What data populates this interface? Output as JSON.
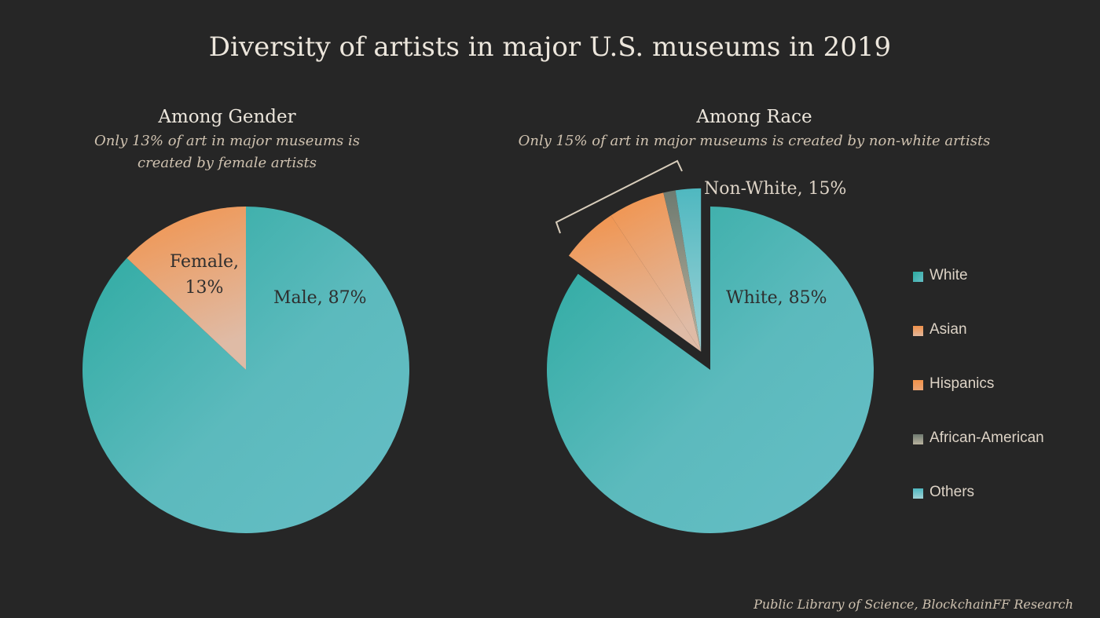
{
  "title": "Diversity of artists in major U.S. museums in 2019",
  "source": "Public Library of Science, BlockchainFF Research",
  "colors": {
    "background": "#262626",
    "teal": "#32aea7",
    "teal_light": "#62bbc1",
    "orange": "#f0914a",
    "orange_light": "#e2b79c",
    "gray": "#8e8e80",
    "text": "#ece6dc"
  },
  "chart_data": [
    {
      "type": "pie",
      "title": "Among Gender",
      "subtitle_lines": [
        "Only 13% of art in major museums is",
        "created by female artists"
      ],
      "slices": [
        {
          "label": "Male",
          "value": 87,
          "label_text": "Male, 87%"
        },
        {
          "label": "Female",
          "value": 13,
          "label_lines": [
            "Female,",
            "13%"
          ]
        }
      ]
    },
    {
      "type": "pie",
      "title": "Among Race",
      "subtitle": "Only 15% of art in major museums is created by non-white artists",
      "slices": [
        {
          "label": "White",
          "value": 85,
          "label_text": "White, 85%"
        },
        {
          "label": "Asian",
          "value": 5.7
        },
        {
          "label": "Hispanics",
          "value": 5.6
        },
        {
          "label": "African-American",
          "value": 1.2
        },
        {
          "label": "Others",
          "value": 2.5
        }
      ],
      "group_label": "Non-White, 15%",
      "legend": [
        "White",
        "Asian",
        "Hispanics",
        "African-American",
        "Others"
      ]
    }
  ]
}
